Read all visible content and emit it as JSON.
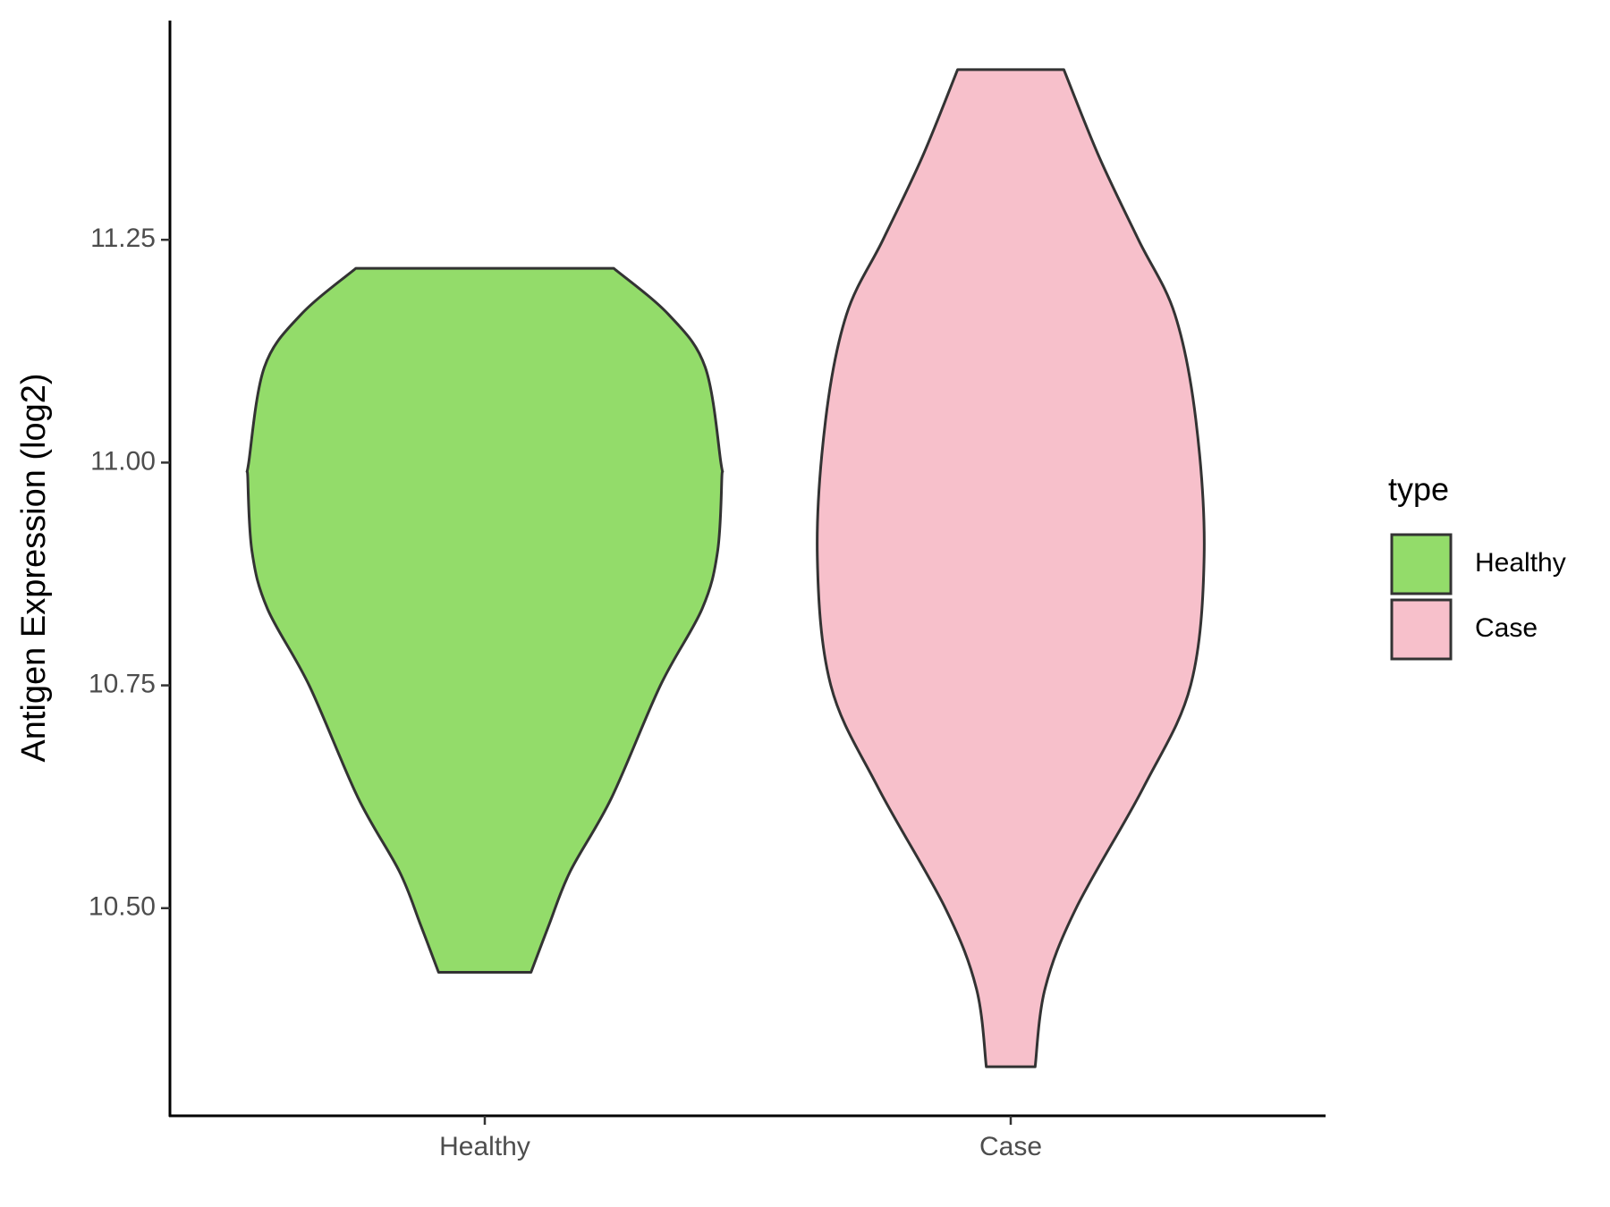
{
  "chart_data": {
    "type": "violin",
    "y_label": "Antigen Expression (log2)",
    "categories": [
      "Healthy",
      "Case"
    ],
    "series": [
      {
        "name": "Healthy",
        "color": "#93dc6a",
        "y": [
          11.218,
          11.166,
          11.107,
          11.0,
          10.983,
          10.9,
          10.836,
          10.75,
          10.624,
          10.541,
          10.482,
          10.428
        ],
        "width": [
          0.544,
          0.776,
          0.93,
          0.996,
          1.0,
          0.982,
          0.917,
          0.741,
          0.535,
          0.36,
          0.272,
          0.195
        ]
      },
      {
        "name": "Case",
        "color": "#f7c0cb",
        "y": [
          11.441,
          11.343,
          11.25,
          11.166,
          11.048,
          10.895,
          10.75,
          10.636,
          10.5,
          10.41,
          10.322
        ],
        "width": [
          0.224,
          0.373,
          0.539,
          0.693,
          0.781,
          0.816,
          0.759,
          0.561,
          0.276,
          0.145,
          0.103
        ]
      }
    ],
    "ylim": [
      10.267,
      11.496
    ],
    "yticks": [
      {
        "value": 10.5,
        "label": "10.50"
      },
      10.75,
      {
        "value": 11,
        "label": "11.00"
      },
      11.25
    ],
    "legend_title": "type",
    "legend_position": "right"
  }
}
